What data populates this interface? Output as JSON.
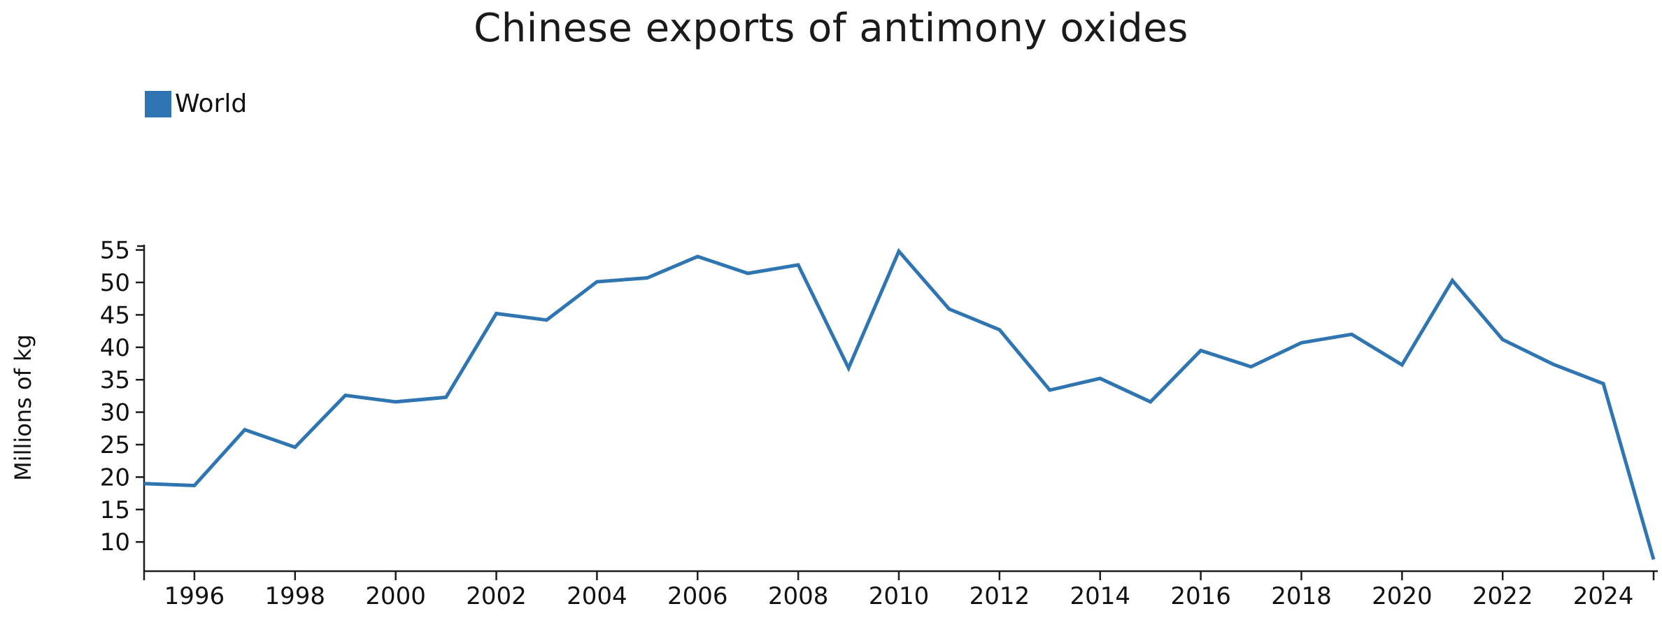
{
  "chart": {
    "title": "Chinese exports of antimony oxides",
    "ylabel": "Millions of kg",
    "legend_label": "World"
  },
  "chart_data": {
    "type": "line",
    "title": "Chinese exports of antimony oxides",
    "xlabel": "",
    "ylabel": "Millions of kg",
    "legend_position": "top-left",
    "grid": false,
    "line_color": "#2e75b2",
    "axis_color": "#1c1c1c",
    "xlim": [
      1995,
      2025
    ],
    "ylim": [
      5.5,
      55.6
    ],
    "x_tick_labels": [
      1996,
      1998,
      2000,
      2002,
      2004,
      2006,
      2008,
      2010,
      2012,
      2014,
      2016,
      2018,
      2020,
      2022,
      2024
    ],
    "x_end_ticks": [
      1995,
      2025
    ],
    "y_ticks": [
      10,
      15,
      20,
      25,
      30,
      35,
      40,
      45,
      50,
      55
    ],
    "series": [
      {
        "name": "World",
        "x": [
          1995,
          1996,
          1997,
          1998,
          1999,
          2000,
          2001,
          2002,
          2003,
          2004,
          2005,
          2006,
          2007,
          2008,
          2009,
          2010,
          2011,
          2012,
          2013,
          2014,
          2015,
          2016,
          2017,
          2018,
          2019,
          2020,
          2021,
          2022,
          2023,
          2024,
          2025
        ],
        "values": [
          19.0,
          18.7,
          27.3,
          24.6,
          32.6,
          31.6,
          32.3,
          45.2,
          44.2,
          50.1,
          50.7,
          54.0,
          51.4,
          52.7,
          36.8,
          54.8,
          45.9,
          42.7,
          33.4,
          35.2,
          31.6,
          39.5,
          37.0,
          40.7,
          42.0,
          37.3,
          50.3,
          41.2,
          37.4,
          34.4,
          7.3
        ]
      }
    ]
  }
}
